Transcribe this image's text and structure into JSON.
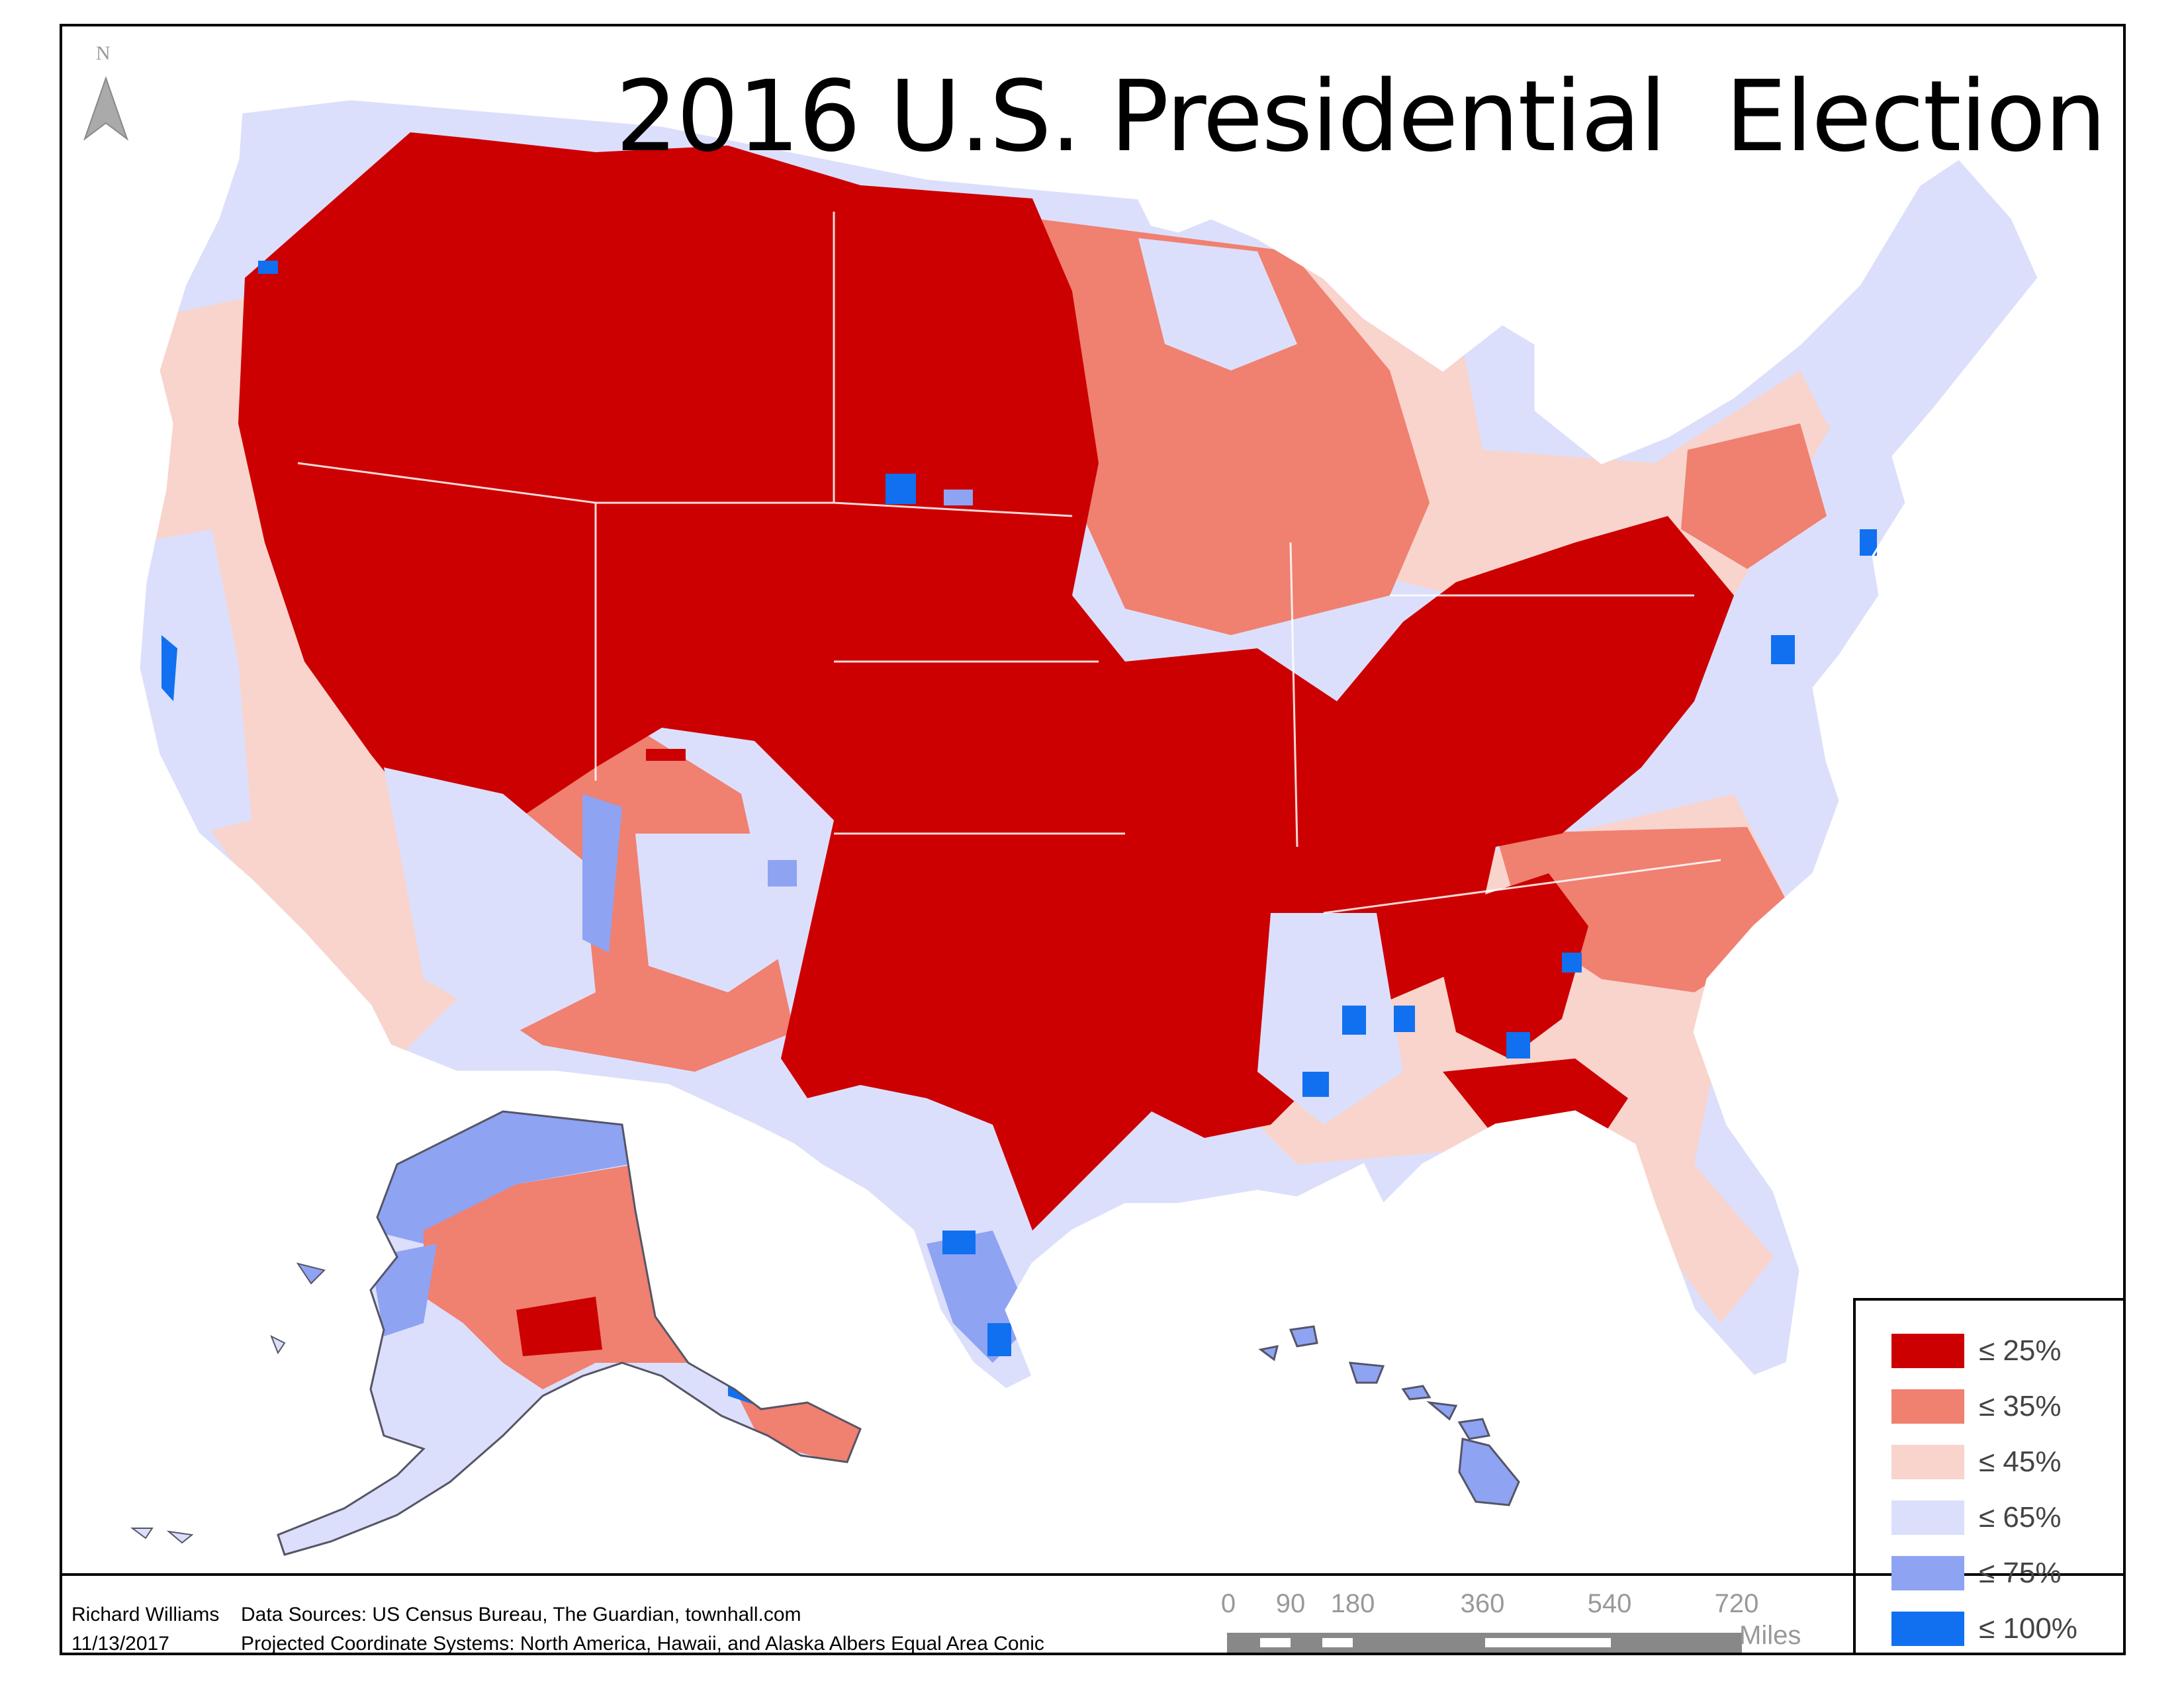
{
  "title": "2016 U.S. Presidential  Election",
  "north_arrow": {
    "letter": "N",
    "icon": "north-arrow-icon"
  },
  "credits": {
    "author": "Richard Williams",
    "date": "11/13/2017",
    "sources": "Data Sources: US Census Bureau, The Guardian, townhall.com",
    "projection": "Projected Coordinate Systems: North America, Hawaii, and Alaska Albers Equal Area Conic"
  },
  "legend": [
    {
      "label": "≤ 25%",
      "color": "#cc0000"
    },
    {
      "label": "≤ 35%",
      "color": "#f08070"
    },
    {
      "label": "≤ 45%",
      "color": "#f8d4cc"
    },
    {
      "label": "≤ 65%",
      "color": "#dcdffb"
    },
    {
      "label": "≤ 75%",
      "color": "#8fa3f3"
    },
    {
      "label": "≤ 100%",
      "color": "#1070f0"
    }
  ],
  "scale_bar": {
    "ticks": [
      "0",
      "90",
      "180",
      "360",
      "540",
      "720"
    ],
    "unit": "Miles"
  },
  "colors": {
    "border": "#000000",
    "state_lines": "#ffffff",
    "outline": "#555566",
    "scale_dark": "#888888",
    "scale_light": "#ffffff"
  }
}
